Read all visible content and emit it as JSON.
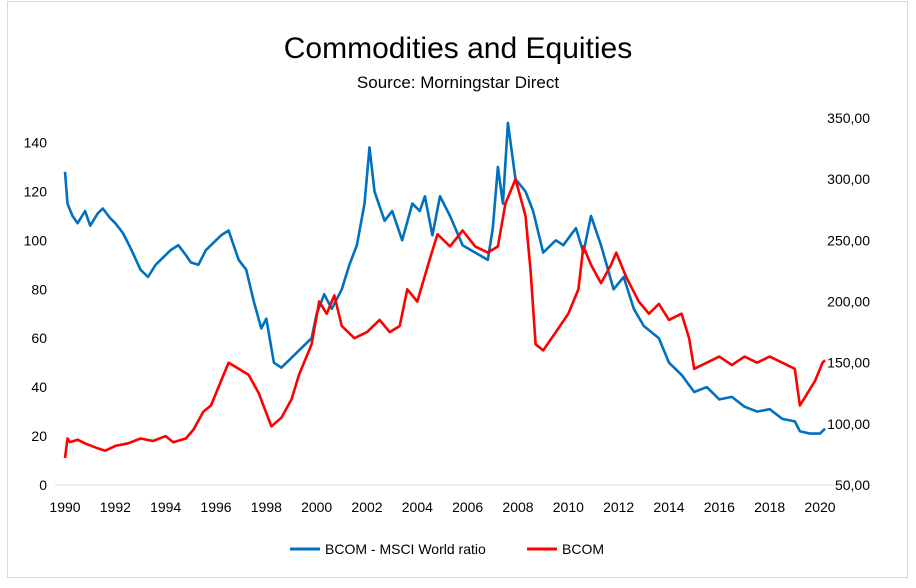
{
  "chart_data": {
    "type": "line",
    "title": "Commodities and Equities",
    "subtitle": "Source: Morningstar Direct",
    "xlabel": "",
    "ylabel": "",
    "xlim": [
      1990,
      2020.3
    ],
    "ylim_left": [
      0,
      150
    ],
    "ylim_right": [
      50,
      350
    ],
    "grid": false,
    "legend_position": "bottom",
    "x_ticks": [
      "1990",
      "1992",
      "1994",
      "1996",
      "1998",
      "2000",
      "2002",
      "2004",
      "2006",
      "2008",
      "2010",
      "2012",
      "2014",
      "2016",
      "2018",
      "2020"
    ],
    "y_left_ticks": [
      "0",
      "20",
      "40",
      "60",
      "80",
      "100",
      "120",
      "140"
    ],
    "y_right_ticks": [
      "50,00",
      "100,00",
      "150,00",
      "200,00",
      "250,00",
      "300,00",
      "350,00"
    ],
    "series": [
      {
        "name": "BCOM - MSCI World ratio",
        "axis": "left",
        "color": "#0070C0",
        "x": [
          1990,
          1990.1,
          1990.3,
          1990.5,
          1990.8,
          1991.0,
          1991.3,
          1991.5,
          1991.8,
          1992,
          1992.3,
          1992.6,
          1993,
          1993.3,
          1993.6,
          1993.8,
          1994.2,
          1994.5,
          1994.8,
          1995,
          1995.3,
          1995.6,
          1995.8,
          1996.2,
          1996.5,
          1996.7,
          1996.9,
          1997.2,
          1997.5,
          1997.8,
          1998,
          1998.3,
          1998.6,
          1999,
          1999.3,
          1999.6,
          1999.8,
          2000,
          2000.3,
          2000.6,
          2001,
          2001.3,
          2001.6,
          2001.9,
          2002.1,
          2002.3,
          2002.7,
          2003,
          2003.4,
          2003.8,
          2004.1,
          2004.3,
          2004.6,
          2004.9,
          2005.3,
          2005.8,
          2006.3,
          2006.8,
          2007,
          2007.2,
          2007.4,
          2007.6,
          2007.9,
          2008.3,
          2008.6,
          2009,
          2009.5,
          2009.8,
          2010.3,
          2010.6,
          2010.9,
          2011.3,
          2011.8,
          2012.2,
          2012.6,
          2013,
          2013.6,
          2014,
          2014.5,
          2015,
          2015.5,
          2016,
          2016.5,
          2017,
          2017.5,
          2018,
          2018.5,
          2019,
          2019.2,
          2019.6,
          2020,
          2020.2
        ],
        "y": [
          128,
          115,
          110,
          107,
          112,
          106,
          111,
          113,
          109,
          107,
          103,
          97,
          88,
          85,
          90,
          92,
          96,
          98,
          94,
          91,
          90,
          96,
          98,
          102,
          104,
          98,
          92,
          88,
          75,
          64,
          68,
          50,
          48,
          52,
          55,
          58,
          60,
          70,
          78,
          72,
          80,
          90,
          98,
          115,
          138,
          120,
          108,
          112,
          100,
          115,
          112,
          118,
          102,
          118,
          110,
          98,
          95,
          92,
          105,
          130,
          115,
          148,
          125,
          120,
          112,
          95,
          100,
          98,
          105,
          95,
          110,
          98,
          80,
          85,
          72,
          65,
          60,
          50,
          45,
          38,
          40,
          35,
          36,
          32,
          30,
          31,
          27,
          26,
          22,
          21,
          21,
          23
        ]
      },
      {
        "name": "BCOM",
        "axis": "right",
        "color": "#FF0000",
        "x": [
          1990,
          1990.1,
          1990.2,
          1990.5,
          1990.8,
          1991.3,
          1991.6,
          1992,
          1992.5,
          1993,
          1993.5,
          1994,
          1994.3,
          1994.8,
          1995.1,
          1995.5,
          1995.8,
          1996.2,
          1996.5,
          1996.9,
          1997.3,
          1997.7,
          1998.2,
          1998.6,
          1999,
          1999.3,
          1999.8,
          2000.1,
          2000.4,
          2000.7,
          2001,
          2001.5,
          2002,
          2002.5,
          2002.9,
          2003.3,
          2003.6,
          2004,
          2004.5,
          2004.8,
          2005.3,
          2005.8,
          2006.3,
          2006.8,
          2007.2,
          2007.5,
          2007.9,
          2008.3,
          2008.5,
          2008.7,
          2009,
          2009.5,
          2010,
          2010.4,
          2010.6,
          2010.9,
          2011.3,
          2011.7,
          2011.9,
          2012.3,
          2012.8,
          2013.2,
          2013.6,
          2014,
          2014.5,
          2014.8,
          2015,
          2015.5,
          2016,
          2016.5,
          2017,
          2017.5,
          2018,
          2018.5,
          2019,
          2019.2,
          2019.5,
          2019.8,
          2020.1,
          2020.2
        ],
        "y": [
          72,
          88,
          85,
          87,
          84,
          80,
          78,
          82,
          84,
          88,
          86,
          90,
          85,
          88,
          95,
          110,
          115,
          135,
          150,
          145,
          140,
          125,
          98,
          105,
          120,
          140,
          165,
          200,
          190,
          205,
          180,
          170,
          175,
          185,
          175,
          180,
          210,
          200,
          235,
          255,
          245,
          258,
          245,
          240,
          245,
          280,
          300,
          270,
          225,
          165,
          160,
          175,
          190,
          210,
          245,
          230,
          215,
          230,
          240,
          220,
          200,
          190,
          198,
          185,
          190,
          170,
          145,
          150,
          155,
          148,
          155,
          150,
          155,
          150,
          145,
          115,
          125,
          135,
          150,
          152
        ]
      }
    ]
  }
}
